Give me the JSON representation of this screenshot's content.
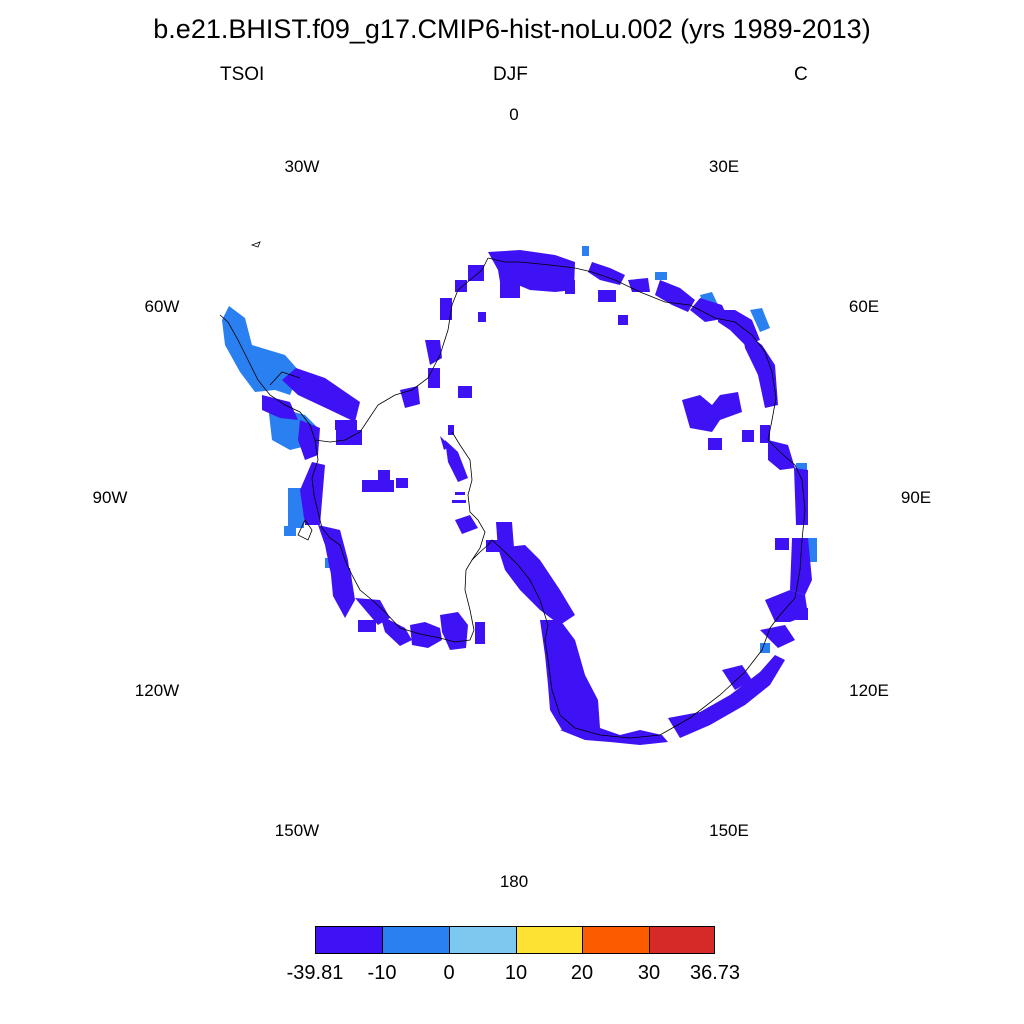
{
  "title": "b.e21.BHIST.f09_g17.CMIP6-hist-noLu.002 (yrs 1989-2013)",
  "left_label": "TSOI",
  "center_label": "DJF",
  "right_label": "C",
  "longitude_labels": {
    "lon_0": "0",
    "lon_30w": "30W",
    "lon_30e": "30E",
    "lon_60w": "60W",
    "lon_60e": "60E",
    "lon_90w": "90W",
    "lon_90e": "90E",
    "lon_120w": "120W",
    "lon_120e": "120E",
    "lon_150w": "150W",
    "lon_150e": "150E",
    "lon_180": "180"
  },
  "colorbar": {
    "colors": [
      "#3e12f5",
      "#2a80f0",
      "#7dc8ee",
      "#fde234",
      "#fd5b00",
      "#d62a29"
    ],
    "ticks": [
      "-39.81",
      "-10",
      "0",
      "10",
      "20",
      "30",
      "36.73"
    ]
  },
  "map": {
    "projection": "south polar stereographic",
    "region": "Antarctica",
    "fill_colors": {
      "cold": "#3e12f5",
      "mid": "#2a80f0"
    }
  }
}
